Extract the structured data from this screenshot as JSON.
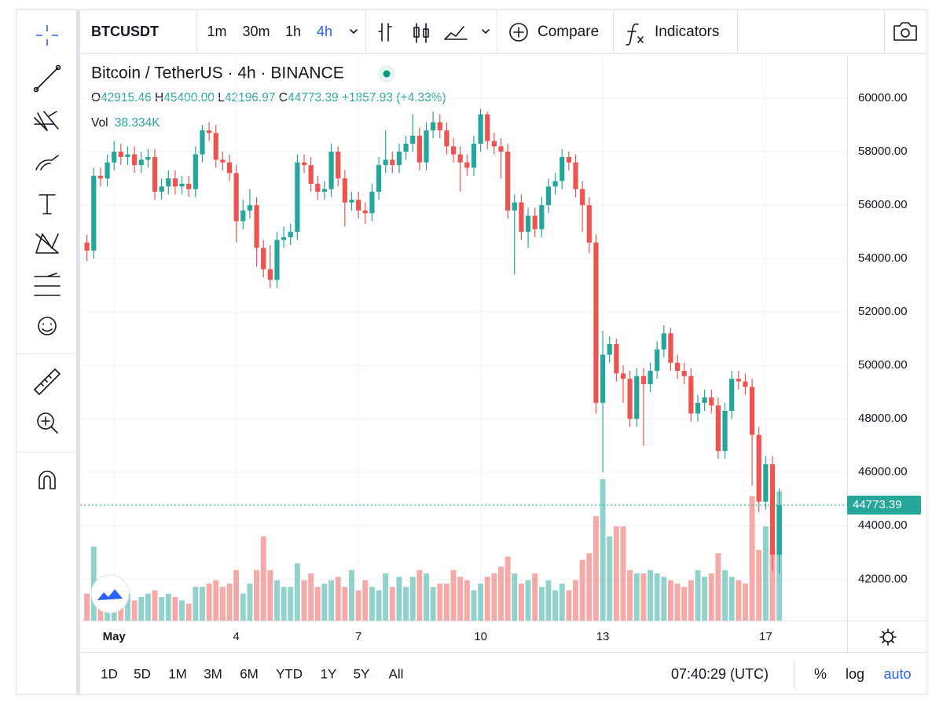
{
  "toolbar": {
    "symbol": "BTCUSDT",
    "intervals": [
      "1m",
      "30m",
      "1h",
      "4h"
    ],
    "compare": "Compare",
    "indicators": "Indicators"
  },
  "legend": {
    "title": "Bitcoin / TetherUS · 4h · BINANCE",
    "ohlc_keys": [
      "O",
      "H",
      "L",
      "C"
    ],
    "ohlc_values": [
      "42915.46",
      "45400.00",
      "42196.97",
      "44773.39"
    ],
    "change": "+1857.93 (+4.33%)",
    "vol_key": "Vol",
    "vol_value": "38.334K"
  },
  "chart_data": {
    "type": "candlestick",
    "up_color": "#26a69a",
    "down_color": "#ef5350",
    "open": [
      54600,
      54300,
      57100,
      57000,
      57600,
      58000,
      57800,
      57900,
      57500,
      57700,
      57800,
      56500,
      56700,
      57000,
      56700,
      56800,
      56600,
      57900,
      58800,
      58700,
      57700,
      57600,
      57200,
      55400,
      55800,
      56000,
      54400,
      53600,
      53200,
      54700,
      54800,
      55000,
      57600,
      57500,
      56800,
      56500,
      56600,
      58000,
      57000,
      56100,
      56200,
      55800,
      55700,
      56500,
      57500,
      57700,
      57500,
      58000,
      58300,
      58600,
      57600,
      58800,
      59100,
      58800,
      58200,
      57900,
      57600,
      57400,
      58300,
      59400,
      58400,
      58200,
      58000,
      55800,
      56100,
      55000,
      55600,
      55100,
      56000,
      56700,
      56900,
      57800,
      57600,
      56600,
      56000,
      54600,
      48600,
      50400,
      50800,
      49700,
      49500,
      48000,
      49600,
      49300,
      49800,
      50600,
      51200,
      50100,
      49800,
      49600,
      48200,
      48600,
      48800,
      48500,
      46800,
      48300,
      49500,
      49400,
      49200,
      47400,
      44900,
      46300,
      42915.46
    ],
    "high": [
      54900,
      57400,
      57400,
      57900,
      58400,
      58300,
      58200,
      58200,
      58000,
      58100,
      58100,
      57000,
      57300,
      57300,
      57100,
      57100,
      58200,
      59000,
      59100,
      59000,
      58000,
      57900,
      57500,
      56200,
      56600,
      56300,
      54700,
      54500,
      55000,
      55200,
      55300,
      57900,
      57900,
      57800,
      57100,
      56900,
      58300,
      58200,
      57300,
      56500,
      56500,
      56100,
      56800,
      57800,
      58800,
      58000,
      58300,
      58600,
      59400,
      58900,
      59100,
      59500,
      59400,
      59100,
      58500,
      58200,
      57900,
      58600,
      59600,
      59500,
      58700,
      58500,
      58300,
      56400,
      56400,
      55900,
      55900,
      56300,
      57000,
      57200,
      58100,
      58000,
      57900,
      56900,
      56300,
      54900,
      51300,
      51100,
      51000,
      50000,
      49800,
      49900,
      49900,
      50100,
      50900,
      51500,
      51400,
      50400,
      50100,
      49900,
      48900,
      49100,
      49100,
      48800,
      48600,
      49800,
      49800,
      49700,
      49500,
      47700,
      46600,
      46600,
      45400
    ],
    "low": [
      53900,
      54000,
      56700,
      56700,
      57300,
      57500,
      57500,
      57200,
      57200,
      57400,
      56200,
      56200,
      56400,
      56400,
      56400,
      56300,
      56300,
      57600,
      58400,
      57400,
      57300,
      56900,
      54600,
      55100,
      55500,
      53700,
      53300,
      52900,
      52900,
      54400,
      54500,
      54700,
      57200,
      56500,
      56200,
      56200,
      56300,
      56700,
      55200,
      55800,
      55500,
      55300,
      55400,
      56200,
      57200,
      57200,
      57200,
      57700,
      58000,
      57300,
      57300,
      58500,
      58500,
      57900,
      57600,
      56500,
      57100,
      57100,
      58000,
      58100,
      57900,
      57000,
      55500,
      53400,
      54700,
      54400,
      54800,
      54800,
      55700,
      56400,
      56600,
      57300,
      56300,
      55000,
      54200,
      48200,
      46000,
      50100,
      49400,
      48600,
      47700,
      47700,
      47000,
      49000,
      49500,
      50300,
      49800,
      49500,
      49300,
      47900,
      47900,
      48300,
      48200,
      46500,
      46500,
      48000,
      49100,
      48900,
      45500,
      44500,
      44600,
      42300,
      42196.97
    ],
    "close": [
      54300,
      57100,
      57000,
      57600,
      58000,
      57800,
      57900,
      57500,
      57700,
      57800,
      56500,
      56700,
      57000,
      56700,
      56800,
      56600,
      57900,
      58800,
      58700,
      57700,
      57600,
      57200,
      55400,
      55800,
      56000,
      54400,
      53600,
      53200,
      54700,
      54800,
      55000,
      57600,
      57500,
      56800,
      56500,
      56600,
      58000,
      57000,
      56100,
      56200,
      55800,
      55700,
      56500,
      57500,
      57700,
      57500,
      58000,
      58300,
      58600,
      57600,
      58800,
      59100,
      58800,
      58200,
      57900,
      57600,
      57400,
      58300,
      59400,
      58400,
      58200,
      58000,
      55800,
      56100,
      55000,
      55600,
      55100,
      56000,
      56700,
      56900,
      57800,
      57600,
      56600,
      56000,
      54600,
      48600,
      50400,
      50800,
      49700,
      49500,
      48000,
      49600,
      49300,
      49800,
      50600,
      51200,
      50100,
      49800,
      49600,
      48200,
      48600,
      48800,
      48500,
      46800,
      48300,
      49500,
      49400,
      49200,
      47400,
      44900,
      46300,
      42915.46,
      44773.39
    ],
    "volume": [
      8,
      22,
      9,
      8,
      7,
      9,
      8,
      6,
      7,
      8,
      9,
      7,
      8,
      7,
      6,
      5,
      10,
      10,
      11,
      12,
      10,
      11,
      15,
      8,
      11,
      15,
      25,
      15,
      12,
      10,
      10,
      17,
      12,
      14,
      10,
      11,
      12,
      13,
      10,
      15,
      9,
      12,
      10,
      9,
      14,
      10,
      13,
      10,
      13,
      15,
      14,
      10,
      11,
      11,
      15,
      13,
      12,
      9,
      11,
      13,
      14,
      16,
      19,
      14,
      11,
      12,
      14,
      10,
      12,
      9,
      11,
      9,
      12,
      18,
      20,
      31,
      42,
      25,
      28,
      28,
      15,
      14,
      14,
      15,
      14,
      13,
      12,
      11,
      10,
      12,
      15,
      13,
      14,
      20,
      15,
      13,
      12,
      11,
      37,
      21,
      28,
      21,
      38.334
    ],
    "xlim": [
      -1,
      112
    ],
    "xticks": [
      {
        "value": 4,
        "label": "May"
      },
      {
        "value": 22,
        "label": "4"
      },
      {
        "value": 40,
        "label": "7"
      },
      {
        "value": 58,
        "label": "10"
      },
      {
        "value": 76,
        "label": "13"
      },
      {
        "value": 100,
        "label": "17"
      }
    ],
    "ylim": [
      40450,
      61620
    ],
    "yticks": [
      {
        "value": 42000,
        "label": "42000.00"
      },
      {
        "value": 44000,
        "label": "44000.00"
      },
      {
        "value": 46000,
        "label": "46000.00"
      },
      {
        "value": 48000,
        "label": "48000.00"
      },
      {
        "value": 50000,
        "label": "50000.00"
      },
      {
        "value": 52000,
        "label": "52000.00"
      },
      {
        "value": 54000,
        "label": "54000.00"
      },
      {
        "value": 56000,
        "label": "56000.00"
      },
      {
        "value": 58000,
        "label": "58000.00"
      },
      {
        "value": 60000,
        "label": "60000.00"
      }
    ],
    "grid": true
  },
  "footer": {
    "ranges": [
      "1D",
      "5D",
      "1M",
      "3M",
      "6M",
      "YTD",
      "1Y",
      "5Y",
      "All"
    ],
    "time": "07:40:29 (UTC)",
    "percent": "%",
    "log": "log",
    "auto": "auto"
  }
}
